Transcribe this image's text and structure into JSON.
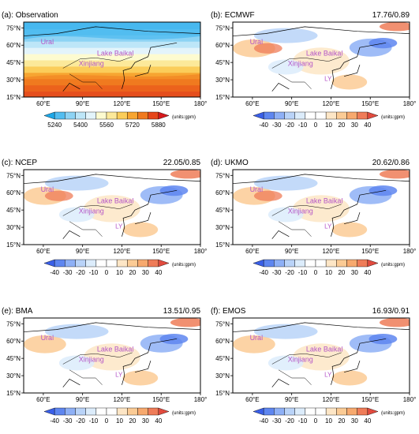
{
  "panels": [
    {
      "id": "a",
      "title": "(a): Observation",
      "stat": "",
      "kind": "obs",
      "places": {
        "ural": "Ural",
        "baikal": "Lake Baikal",
        "xinjiang": "Xinjiang",
        "yangtze": ""
      }
    },
    {
      "id": "b",
      "title": "(b): ECMWF",
      "stat": "17.76/0.89",
      "kind": "diff",
      "places": {
        "ural": "Ural",
        "baikal": "Lake Baikal",
        "xinjiang": "Xinjiang",
        "yangtze": "LY"
      }
    },
    {
      "id": "c",
      "title": "(c): NCEP",
      "stat": "22.05/0.85",
      "kind": "diff",
      "places": {
        "ural": "Ural",
        "baikal": "Lake Baikal",
        "xinjiang": "Xinjiang",
        "yangtze": "LY"
      }
    },
    {
      "id": "d",
      "title": "(d): UKMO",
      "stat": "20.62/0.86",
      "kind": "diff",
      "places": {
        "ural": "Ural",
        "baikal": "Lake Baikal",
        "xinjiang": "Xinjiang",
        "yangtze": "LY"
      }
    },
    {
      "id": "e",
      "title": "(e): BMA",
      "stat": "13.51/0.95",
      "kind": "diff",
      "places": {
        "ural": "Ural",
        "baikal": "Lake Baikal",
        "xinjiang": "Xinjiang",
        "yangtze": "LY"
      }
    },
    {
      "id": "f",
      "title": "(f): EMOS",
      "stat": "16.93/0.91",
      "kind": "diff",
      "places": {
        "ural": "Ural",
        "baikal": "Lake Baikal",
        "xinjiang": "Xinjiang",
        "yangtze": "LY"
      }
    }
  ],
  "lat_ticks": [
    "15°N",
    "30°N",
    "45°N",
    "60°N",
    "75°N"
  ],
  "lon_ticks": [
    "60°E",
    "90°E",
    "120°E",
    "150°E",
    "180°"
  ],
  "obs_colorbar": {
    "labels": [
      "5240",
      "5400",
      "5560",
      "5720",
      "5880"
    ],
    "colors": [
      "#1da7e8",
      "#52bdf0",
      "#8dd3f4",
      "#bde6f8",
      "#e3f4fb",
      "#fdfbd0",
      "#fce99a",
      "#fbcd5a",
      "#f7a531",
      "#f07a1f",
      "#e6461a",
      "#d7191c"
    ],
    "units": "(units:gpm)"
  },
  "diff_colorbar": {
    "labels": [
      "-40",
      "-30",
      "-20",
      "-10",
      "0",
      "10",
      "20",
      "30",
      "40"
    ],
    "colors": [
      "#3a5fe8",
      "#5e86f0",
      "#8eb0f6",
      "#b9d3f8",
      "#dcecfb",
      "#ffffff",
      "#ffffff",
      "#fde6c6",
      "#fbcb95",
      "#f7a96e",
      "#ef7c58",
      "#e14b3e"
    ],
    "units": "(units:gpm)"
  },
  "colors": {
    "place_label": "#b455c7",
    "frame": "#000000"
  }
}
